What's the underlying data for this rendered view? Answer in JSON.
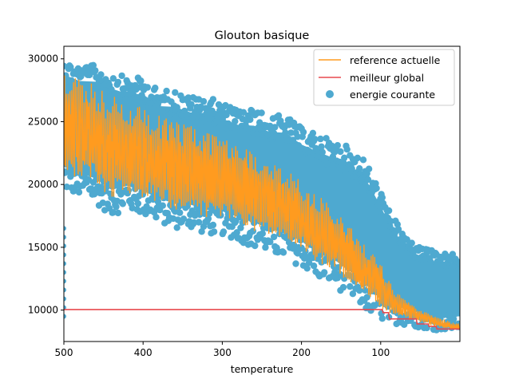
{
  "chart_data": {
    "type": "line",
    "title": "Glouton basique",
    "xlabel": "temperature",
    "ylabel": "",
    "xlim": [
      500,
      0
    ],
    "ylim": [
      7500,
      31000
    ],
    "x_ticks": [
      500,
      400,
      300,
      200,
      100
    ],
    "y_ticks": [
      10000,
      15000,
      20000,
      25000,
      30000
    ],
    "x_tick_labels": [
      "500",
      "400",
      "300",
      "200",
      "100"
    ],
    "y_tick_labels": [
      "10000",
      "15000",
      "20000",
      "25000",
      "30000"
    ],
    "grid": false,
    "legend_position": "top-right",
    "series": [
      {
        "name": "reference actuelle",
        "kind": "line",
        "color": "#ff9b1f",
        "x": [
          500,
          480,
          460,
          440,
          420,
          400,
          380,
          360,
          340,
          320,
          300,
          280,
          260,
          240,
          220,
          200,
          180,
          160,
          140,
          120,
          100,
          90,
          80,
          70,
          60,
          50,
          40,
          30,
          20,
          10,
          0
        ],
        "y": [
          24000,
          24500,
          23500,
          22500,
          22500,
          22000,
          21500,
          21500,
          21000,
          21000,
          20500,
          20000,
          19500,
          18500,
          18000,
          17500,
          16500,
          15500,
          14500,
          13000,
          12000,
          11000,
          10500,
          10000,
          9800,
          9500,
          9200,
          9000,
          8800,
          8700,
          8600
        ],
        "y_low": [
          20500,
          20000,
          19500,
          18500,
          19000,
          18500,
          18000,
          17500,
          17500,
          17000,
          17000,
          16500,
          16000,
          15500,
          15000,
          14500,
          13500,
          13000,
          12000,
          11000,
          10000,
          9700,
          9500,
          9300,
          9100,
          9000,
          8800,
          8700,
          8600,
          8500,
          8500
        ],
        "y_high": [
          29500,
          29000,
          28500,
          27500,
          27000,
          26500,
          26000,
          25500,
          25000,
          24500,
          24000,
          23500,
          23000,
          22000,
          21500,
          20500,
          19500,
          18500,
          17000,
          15500,
          14000,
          12500,
          11500,
          11000,
          10500,
          10000,
          9800,
          9500,
          9300,
          9000,
          8900
        ]
      },
      {
        "name": "meilleur global",
        "kind": "step",
        "color": "#e8494f",
        "x": [
          500,
          98,
          97,
          90,
          89,
          55,
          54,
          40,
          39,
          30,
          29,
          0
        ],
        "y": [
          10050,
          10050,
          9800,
          9800,
          9300,
          9300,
          8900,
          8900,
          8700,
          8700,
          8500,
          8500
        ]
      },
      {
        "name": "energie courante",
        "kind": "scatter-band",
        "color": "#4ea9d0",
        "x": [
          500,
          480,
          460,
          440,
          420,
          400,
          380,
          360,
          340,
          320,
          300,
          280,
          260,
          240,
          220,
          200,
          180,
          160,
          140,
          120,
          100,
          90,
          80,
          70,
          60,
          50,
          40,
          30,
          20,
          10,
          0
        ],
        "y_low": [
          19500,
          19000,
          18500,
          17500,
          18000,
          17500,
          17000,
          16500,
          16500,
          16000,
          16000,
          15500,
          15000,
          14500,
          14000,
          13500,
          12500,
          12000,
          11000,
          10000,
          9200,
          9000,
          8900,
          8800,
          8700,
          8600,
          8500,
          8400,
          8400,
          8400,
          8400
        ],
        "y_high": [
          30000,
          29500,
          29500,
          29000,
          28500,
          28500,
          27500,
          27500,
          27000,
          27000,
          26500,
          26000,
          26000,
          25500,
          25500,
          24500,
          24000,
          23500,
          23000,
          22000,
          19500,
          18000,
          17000,
          16000,
          15500,
          15000,
          15000,
          14500,
          14500,
          14500,
          14500
        ]
      }
    ]
  }
}
